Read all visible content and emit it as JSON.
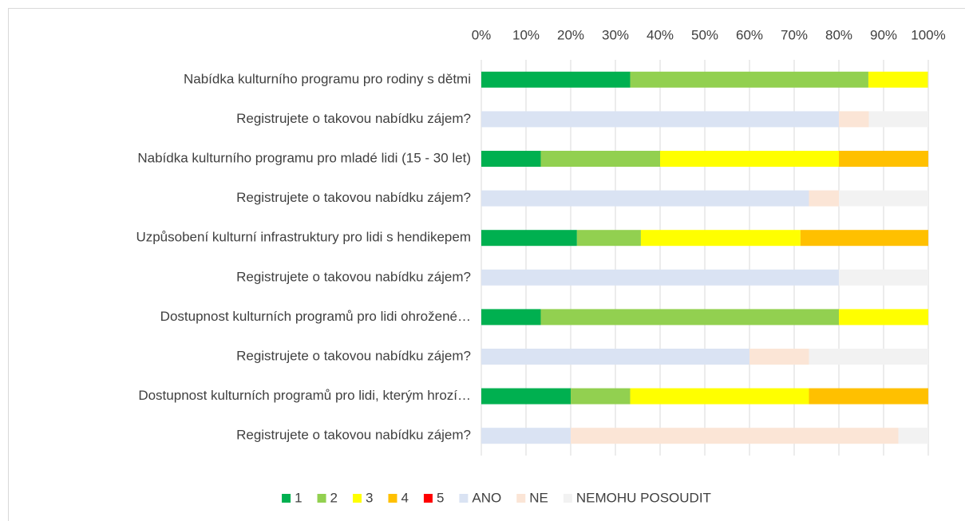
{
  "chart_data": {
    "type": "stacked_bar_horizontal",
    "categories": [
      "Nabídka kulturního programu pro rodiny s dětmi",
      "Registrujete o takovou nabídku zájem?",
      "Nabídka kulturního programu pro mladé lidi (15 - 30 let)",
      "Registrujete o takovou nabídku zájem?",
      "Uzpůsobení kulturní infrastruktury pro lidi s hendikepem",
      "Registrujete o takovou nabídku zájem?",
      "Dostupnost kulturních programů pro lidi ohrožené…",
      "Registrujete o takovou nabídku zájem?",
      "Dostupnost kulturních programů pro lidi, kterým hrozí…",
      "Registrujete o takovou nabídku zájem?"
    ],
    "series": [
      {
        "name": "1",
        "color": "#00b050",
        "values": [
          33.3,
          0,
          13.3,
          0,
          21.4,
          0,
          13.3,
          0,
          20,
          0
        ]
      },
      {
        "name": "2",
        "color": "#92d050",
        "values": [
          53.3,
          0,
          26.7,
          0,
          14.3,
          0,
          66.7,
          0,
          13.3,
          0
        ]
      },
      {
        "name": "3",
        "color": "#ffff00",
        "values": [
          13.3,
          0,
          40,
          0,
          35.7,
          0,
          20,
          0,
          40,
          0
        ]
      },
      {
        "name": "4",
        "color": "#ffc000",
        "values": [
          0,
          0,
          20,
          0,
          28.6,
          0,
          0,
          0,
          26.7,
          0
        ]
      },
      {
        "name": "5",
        "color": "#ff0000",
        "values": [
          0,
          0,
          0,
          0,
          0,
          0,
          0,
          0,
          0,
          0
        ]
      },
      {
        "name": "ANO",
        "color": "#dae3f3",
        "values": [
          0,
          80,
          0,
          73.3,
          0,
          80,
          0,
          60,
          0,
          20
        ]
      },
      {
        "name": "NE",
        "color": "#fbe5d6",
        "values": [
          0,
          6.7,
          0,
          6.7,
          0,
          0,
          0,
          13.3,
          0,
          73.3
        ]
      },
      {
        "name": "NEMOHU POSOUDIT",
        "color": "#f2f2f2",
        "values": [
          0,
          13.3,
          0,
          20,
          0,
          20,
          0,
          26.7,
          0,
          6.7
        ]
      }
    ],
    "xlim": [
      0,
      100
    ],
    "xticks": [
      {
        "value": 0,
        "label": "0%"
      },
      {
        "value": 10,
        "label": "10%"
      },
      {
        "value": 20,
        "label": "20%"
      },
      {
        "value": 30,
        "label": "30%"
      },
      {
        "value": 40,
        "label": "40%"
      },
      {
        "value": 50,
        "label": "50%"
      },
      {
        "value": 60,
        "label": "60%"
      },
      {
        "value": 70,
        "label": "70%"
      },
      {
        "value": 80,
        "label": "80%"
      },
      {
        "value": 90,
        "label": "90%"
      },
      {
        "value": 100,
        "label": "100%"
      }
    ],
    "grid": true,
    "legend": "bottom"
  }
}
